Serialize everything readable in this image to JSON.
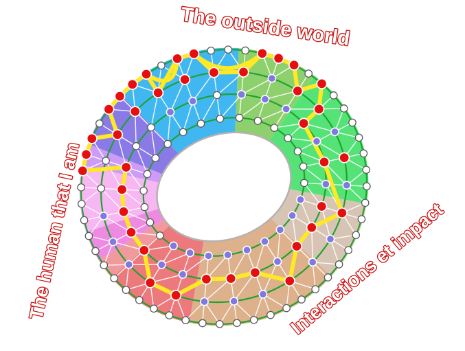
{
  "diagram": {
    "labels": {
      "top": "The outside world",
      "left": "The human that I am",
      "bottom_right": "Interactions et impact",
      "label_color": "#c8100e"
    },
    "palette": {
      "node_white": "#ffffff",
      "node_purple": "#8278e2",
      "node_red": "#e60f0f",
      "node_stroke_white": "#5a5a5a",
      "node_stroke_colored": "#ffffff",
      "path_yellow": "#ffe824",
      "ring_green": "#1fa32e",
      "mesh_white": "#ffffff",
      "hole_fill": "#ffffff",
      "hole_border": "#b7b0b0"
    },
    "sectors": [
      {
        "name": "blue",
        "color": "#41b7f2",
        "start": -27,
        "end": 25
      },
      {
        "name": "olive-green",
        "color": "#8fd06e",
        "start": 25,
        "end": 58
      },
      {
        "name": "bright-green",
        "color": "#55e378",
        "start": 58,
        "end": 118
      },
      {
        "name": "light-tan",
        "color": "#d8c4b4",
        "start": 118,
        "end": 151
      },
      {
        "name": "tan",
        "color": "#dcb18c",
        "start": 151,
        "end": 213
      },
      {
        "name": "red",
        "color": "#ec797c",
        "start": 213,
        "end": 250
      },
      {
        "name": "rose",
        "color": "#f09a9e",
        "start": 250,
        "end": 259
      },
      {
        "name": "orchid",
        "color": "#ee8ae2",
        "start": 259,
        "end": 272
      },
      {
        "name": "pale-pink",
        "color": "#f6b7f2",
        "start": 272,
        "end": 300
      },
      {
        "name": "violet",
        "color": "#cc9cf8",
        "start": 300,
        "end": 309
      },
      {
        "name": "purple",
        "color": "#8a7ae8",
        "start": 309,
        "end": 333
      }
    ],
    "rings": [
      {
        "name": "outer",
        "count": 52,
        "nodes": "rrwwwrrrwrwwwwwwwwwwwwwwwwwwwwwwwwwwwwwwwwwrrrwrrrrw"
      },
      {
        "name": "ring-b",
        "count": 26,
        "nodes": "rrrprrprprpprppprrpppwwrrr"
      },
      {
        "name": "ring-c",
        "count": 26,
        "nodes": "pwppprprprrrprrrpprrrrrwwp"
      },
      {
        "name": "ring-d",
        "count": 26,
        "nodes": "wwwwwwwwwpppppppppwwwwwwww"
      }
    ],
    "highlight_path": [
      "A43",
      "A44",
      "A45",
      "B23",
      "A47",
      "A48",
      "A49",
      "A50",
      "B25",
      "A0",
      "A1",
      "B1",
      "B2",
      "A5",
      "A6",
      "A7",
      "B4",
      "A9",
      "B5",
      "C5",
      "C7",
      "B9",
      "C10",
      "C11",
      "B12",
      "C13",
      "C14",
      "C15",
      "B16",
      "B17",
      "C18",
      "C19",
      "C20",
      "C21",
      "C22"
    ],
    "swags": [
      {
        "from": "A50",
        "to": "A0"
      },
      {
        "from": "A1",
        "to": "A5"
      }
    ]
  }
}
